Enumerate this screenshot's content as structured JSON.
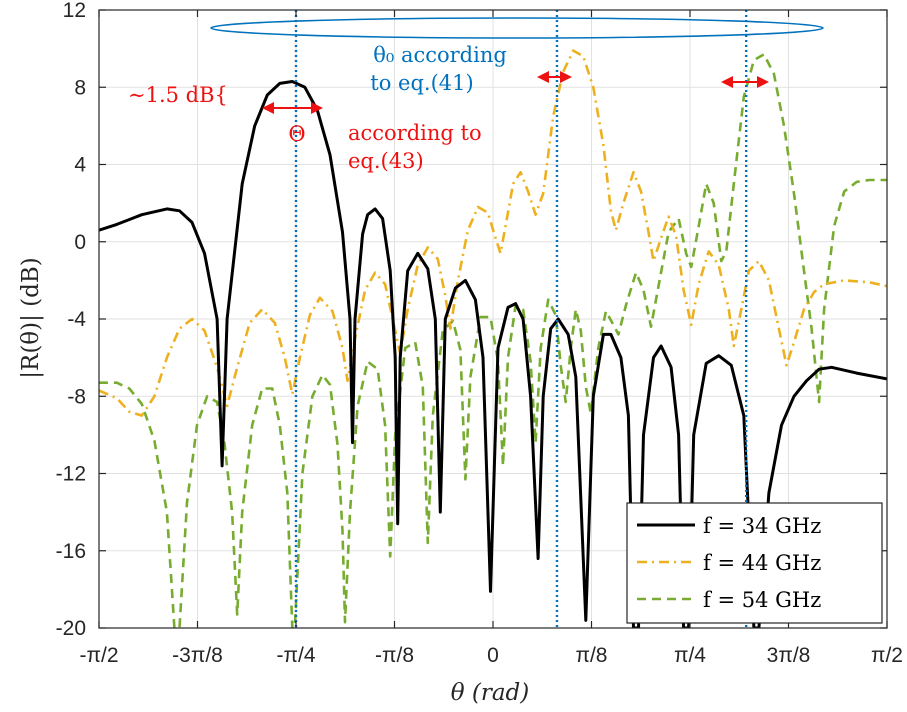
{
  "chart_data": {
    "type": "line",
    "title": "",
    "xlabel": "θ (rad)",
    "ylabel": "|R(θ)| (dB)",
    "xlim": [
      -1.5708,
      1.5708
    ],
    "ylim": [
      -20,
      12
    ],
    "grid": true,
    "legend_position": "bottom-right",
    "x_ticks": [
      {
        "value": -1.5708,
        "label": "-π/2"
      },
      {
        "value": -1.1781,
        "label": "-3π/8"
      },
      {
        "value": -0.7854,
        "label": "-π/4"
      },
      {
        "value": -0.3927,
        "label": "-π/8"
      },
      {
        "value": 0,
        "label": "0"
      },
      {
        "value": 0.3927,
        "label": "π/8"
      },
      {
        "value": 0.7854,
        "label": "π/4"
      },
      {
        "value": 1.1781,
        "label": "3π/8"
      },
      {
        "value": 1.5708,
        "label": "π/2"
      }
    ],
    "y_ticks": [
      {
        "value": 12,
        "label": "12"
      },
      {
        "value": 8,
        "label": "8"
      },
      {
        "value": 4,
        "label": "4"
      },
      {
        "value": 0,
        "label": "0"
      },
      {
        "value": -4,
        "label": "-4"
      },
      {
        "value": -8,
        "label": "-8"
      },
      {
        "value": -12,
        "label": "-12"
      },
      {
        "value": -16,
        "label": "-16"
      },
      {
        "value": -20,
        "label": "-20"
      }
    ],
    "series": [
      {
        "name": "f = 34 GHz",
        "legend": "f = 34 GHz",
        "color": "#000000",
        "dash": "solid",
        "points": [
          [
            -1.571,
            0.6
          ],
          [
            -1.5,
            0.9
          ],
          [
            -1.4,
            1.4
          ],
          [
            -1.3,
            1.7
          ],
          [
            -1.25,
            1.6
          ],
          [
            -1.2,
            1.0
          ],
          [
            -1.15,
            -0.6
          ],
          [
            -1.1,
            -4
          ],
          [
            -1.08,
            -11.6
          ],
          [
            -1.06,
            -4
          ],
          [
            -1.0,
            3.0
          ],
          [
            -0.95,
            6.0
          ],
          [
            -0.9,
            7.6
          ],
          [
            -0.85,
            8.2
          ],
          [
            -0.8,
            8.3
          ],
          [
            -0.75,
            8.0
          ],
          [
            -0.7,
            6.8
          ],
          [
            -0.65,
            4.5
          ],
          [
            -0.6,
            0.5
          ],
          [
            -0.57,
            -4
          ],
          [
            -0.56,
            -10.4
          ],
          [
            -0.55,
            -4
          ],
          [
            -0.52,
            0.4
          ],
          [
            -0.5,
            1.4
          ],
          [
            -0.47,
            1.7
          ],
          [
            -0.44,
            1.2
          ],
          [
            -0.41,
            -1.5
          ],
          [
            -0.39,
            -6
          ],
          [
            -0.38,
            -14.6
          ],
          [
            -0.37,
            -6
          ],
          [
            -0.34,
            -1.5
          ],
          [
            -0.3,
            -0.6
          ],
          [
            -0.26,
            -1.4
          ],
          [
            -0.23,
            -4
          ],
          [
            -0.21,
            -14
          ],
          [
            -0.19,
            -4
          ],
          [
            -0.15,
            -2.4
          ],
          [
            -0.11,
            -2.0
          ],
          [
            -0.07,
            -3.0
          ],
          [
            -0.04,
            -6
          ],
          [
            -0.01,
            -18.1
          ],
          [
            0.02,
            -5.5
          ],
          [
            0.06,
            -3.4
          ],
          [
            0.09,
            -3.2
          ],
          [
            0.12,
            -4.0
          ],
          [
            0.15,
            -8
          ],
          [
            0.18,
            -16.4
          ],
          [
            0.2,
            -8
          ],
          [
            0.23,
            -4.5
          ],
          [
            0.26,
            -4.0
          ],
          [
            0.3,
            -4.8
          ],
          [
            0.33,
            -7
          ],
          [
            0.37,
            -19.6
          ],
          [
            0.4,
            -8
          ],
          [
            0.44,
            -4.8
          ],
          [
            0.47,
            -4.8
          ],
          [
            0.51,
            -6
          ],
          [
            0.54,
            -9
          ],
          [
            0.56,
            -20
          ],
          [
            0.58,
            -20
          ],
          [
            0.6,
            -10
          ],
          [
            0.64,
            -6
          ],
          [
            0.67,
            -5.4
          ],
          [
            0.71,
            -6.5
          ],
          [
            0.74,
            -10
          ],
          [
            0.76,
            -20
          ],
          [
            0.78,
            -20
          ],
          [
            0.8,
            -10
          ],
          [
            0.85,
            -6.3
          ],
          [
            0.9,
            -5.9
          ],
          [
            0.95,
            -6.4
          ],
          [
            1.0,
            -9
          ],
          [
            1.04,
            -20
          ],
          [
            1.06,
            -20
          ],
          [
            1.1,
            -13
          ],
          [
            1.15,
            -9.5
          ],
          [
            1.2,
            -8
          ],
          [
            1.25,
            -7.2
          ],
          [
            1.3,
            -6.6
          ],
          [
            1.35,
            -6.5
          ],
          [
            1.45,
            -6.8
          ],
          [
            1.571,
            -7.1
          ]
        ]
      },
      {
        "name": "f = 44 GHz",
        "legend": "f = 44 GHz",
        "color": "#EDB120",
        "dash": "dashdot",
        "points": [
          [
            -1.571,
            -7.7
          ],
          [
            -1.5,
            -8.1
          ],
          [
            -1.45,
            -8.8
          ],
          [
            -1.4,
            -9.0
          ],
          [
            -1.35,
            -8.0
          ],
          [
            -1.3,
            -6.0
          ],
          [
            -1.25,
            -4.5
          ],
          [
            -1.2,
            -4.0
          ],
          [
            -1.15,
            -4.6
          ],
          [
            -1.1,
            -6.5
          ],
          [
            -1.06,
            -8.5
          ],
          [
            -1.02,
            -6.5
          ],
          [
            -0.97,
            -4.2
          ],
          [
            -0.92,
            -3.5
          ],
          [
            -0.87,
            -4.2
          ],
          [
            -0.83,
            -6.0
          ],
          [
            -0.8,
            -7.9
          ],
          [
            -0.77,
            -6.0
          ],
          [
            -0.73,
            -3.8
          ],
          [
            -0.69,
            -2.9
          ],
          [
            -0.64,
            -3.6
          ],
          [
            -0.6,
            -5.5
          ],
          [
            -0.58,
            -7.2
          ],
          [
            -0.55,
            -5.0
          ],
          [
            -0.51,
            -2.5
          ],
          [
            -0.47,
            -1.6
          ],
          [
            -0.43,
            -2.2
          ],
          [
            -0.4,
            -4.0
          ],
          [
            -0.37,
            -5.8
          ],
          [
            -0.34,
            -3.5
          ],
          [
            -0.3,
            -1.2
          ],
          [
            -0.26,
            -0.3
          ],
          [
            -0.22,
            -0.9
          ],
          [
            -0.19,
            -2.8
          ],
          [
            -0.17,
            -4.5
          ],
          [
            -0.14,
            -2.0
          ],
          [
            -0.1,
            0.6
          ],
          [
            -0.06,
            1.8
          ],
          [
            -0.02,
            1.5
          ],
          [
            0.01,
            0.2
          ],
          [
            0.03,
            -0.6
          ],
          [
            0.05,
            0.8
          ],
          [
            0.08,
            3.0
          ],
          [
            0.11,
            3.6
          ],
          [
            0.14,
            2.6
          ],
          [
            0.17,
            1.4
          ],
          [
            0.2,
            2.5
          ],
          [
            0.24,
            6.5
          ],
          [
            0.28,
            8.8
          ],
          [
            0.32,
            9.9
          ],
          [
            0.36,
            9.6
          ],
          [
            0.4,
            8.0
          ],
          [
            0.44,
            5.0
          ],
          [
            0.47,
            1.6
          ],
          [
            0.49,
            0.6
          ],
          [
            0.52,
            2.0
          ],
          [
            0.56,
            3.6
          ],
          [
            0.59,
            2.6
          ],
          [
            0.62,
            0.5
          ],
          [
            0.64,
            -1.0
          ],
          [
            0.67,
            0.2
          ],
          [
            0.7,
            1.3
          ],
          [
            0.73,
            0.3
          ],
          [
            0.76,
            -2.5
          ],
          [
            0.79,
            -4.3
          ],
          [
            0.82,
            -2.2
          ],
          [
            0.86,
            -0.5
          ],
          [
            0.9,
            -1.2
          ],
          [
            0.94,
            -3.5
          ],
          [
            0.96,
            -5.4
          ],
          [
            0.99,
            -3.5
          ],
          [
            1.02,
            -1.5
          ],
          [
            1.06,
            -1.0
          ],
          [
            1.1,
            -2.0
          ],
          [
            1.14,
            -4.5
          ],
          [
            1.17,
            -6.4
          ],
          [
            1.2,
            -5.2
          ],
          [
            1.24,
            -3.5
          ],
          [
            1.28,
            -2.6
          ],
          [
            1.32,
            -2.2
          ],
          [
            1.4,
            -2.0
          ],
          [
            1.5,
            -2.1
          ],
          [
            1.571,
            -2.3
          ]
        ]
      },
      {
        "name": "f = 54 GHz",
        "legend": "f = 54 GHz",
        "color": "#77AC30",
        "dash": "dashed",
        "points": [
          [
            -1.571,
            -7.3
          ],
          [
            -1.5,
            -7.3
          ],
          [
            -1.45,
            -7.6
          ],
          [
            -1.4,
            -8.4
          ],
          [
            -1.35,
            -10.3
          ],
          [
            -1.3,
            -14.0
          ],
          [
            -1.27,
            -20
          ],
          [
            -1.25,
            -20
          ],
          [
            -1.22,
            -13.5
          ],
          [
            -1.18,
            -9.5
          ],
          [
            -1.14,
            -8.0
          ],
          [
            -1.1,
            -8.3
          ],
          [
            -1.07,
            -10.5
          ],
          [
            -1.04,
            -14.0
          ],
          [
            -1.02,
            -19.3
          ],
          [
            -1.0,
            -14
          ],
          [
            -0.96,
            -9.5
          ],
          [
            -0.92,
            -7.6
          ],
          [
            -0.88,
            -7.6
          ],
          [
            -0.85,
            -9.5
          ],
          [
            -0.82,
            -13.0
          ],
          [
            -0.8,
            -20
          ],
          [
            -0.79,
            -20
          ],
          [
            -0.76,
            -12
          ],
          [
            -0.72,
            -8.0
          ],
          [
            -0.68,
            -6.9
          ],
          [
            -0.65,
            -7.4
          ],
          [
            -0.62,
            -10.5
          ],
          [
            -0.6,
            -15
          ],
          [
            -0.59,
            -19.7
          ],
          [
            -0.57,
            -14
          ],
          [
            -0.54,
            -8.5
          ],
          [
            -0.5,
            -6.2
          ],
          [
            -0.46,
            -6.6
          ],
          [
            -0.43,
            -9.5
          ],
          [
            -0.41,
            -16.3
          ],
          [
            -0.39,
            -10
          ],
          [
            -0.35,
            -5.5
          ],
          [
            -0.31,
            -5.2
          ],
          [
            -0.28,
            -7.5
          ],
          [
            -0.26,
            -15.6
          ],
          [
            -0.24,
            -9
          ],
          [
            -0.2,
            -4.6
          ],
          [
            -0.16,
            -4.1
          ],
          [
            -0.13,
            -5.6
          ],
          [
            -0.11,
            -12.3
          ],
          [
            -0.09,
            -7
          ],
          [
            -0.05,
            -3.9
          ],
          [
            -0.01,
            -3.9
          ],
          [
            0.02,
            -6.2
          ],
          [
            0.04,
            -11.6
          ],
          [
            0.06,
            -6.0
          ],
          [
            0.09,
            -3.3
          ],
          [
            0.12,
            -3.5
          ],
          [
            0.15,
            -6.2
          ],
          [
            0.17,
            -10.4
          ],
          [
            0.19,
            -5.5
          ],
          [
            0.22,
            -3.0
          ],
          [
            0.25,
            -3.8
          ],
          [
            0.27,
            -6.4
          ],
          [
            0.29,
            -8.3
          ],
          [
            0.31,
            -5.5
          ],
          [
            0.33,
            -3.5
          ],
          [
            0.35,
            -4.6
          ],
          [
            0.37,
            -7.5
          ],
          [
            0.39,
            -8.9
          ],
          [
            0.42,
            -5.5
          ],
          [
            0.45,
            -3.6
          ],
          [
            0.48,
            -4.3
          ],
          [
            0.5,
            -4.8
          ],
          [
            0.53,
            -3.3
          ],
          [
            0.57,
            -1.6
          ],
          [
            0.6,
            -2.5
          ],
          [
            0.63,
            -4.4
          ],
          [
            0.66,
            -2.3
          ],
          [
            0.7,
            0.5
          ],
          [
            0.74,
            1.2
          ],
          [
            0.77,
            -0.6
          ],
          [
            0.79,
            -1.3
          ],
          [
            0.82,
            0.8
          ],
          [
            0.85,
            3.0
          ],
          [
            0.88,
            2.0
          ],
          [
            0.91,
            -1.0
          ],
          [
            0.93,
            -0.5
          ],
          [
            0.96,
            3.0
          ],
          [
            1.0,
            7.5
          ],
          [
            1.04,
            9.4
          ],
          [
            1.08,
            9.7
          ],
          [
            1.12,
            8.7
          ],
          [
            1.16,
            6.0
          ],
          [
            1.2,
            2.5
          ],
          [
            1.24,
            -1.5
          ],
          [
            1.27,
            -4.5
          ],
          [
            1.3,
            -8.3
          ],
          [
            1.32,
            -3.5
          ],
          [
            1.36,
            0.8
          ],
          [
            1.4,
            2.6
          ],
          [
            1.45,
            3.1
          ],
          [
            1.5,
            3.2
          ],
          [
            1.571,
            3.2
          ]
        ]
      }
    ],
    "theta0_lines": [
      -0.7854,
      0.2551,
      1.0094
    ],
    "annotations": {
      "db_label": "∼1.5 dB{",
      "theta_symbol": "Θ",
      "theta_note_line1": "according to",
      "theta_note_line2": "eq.(43)",
      "theta0_line1": "θ₀ according",
      "theta0_line2": "to eq.(41)",
      "color_red": "#EE1111",
      "color_blue": "#0072BD"
    }
  }
}
